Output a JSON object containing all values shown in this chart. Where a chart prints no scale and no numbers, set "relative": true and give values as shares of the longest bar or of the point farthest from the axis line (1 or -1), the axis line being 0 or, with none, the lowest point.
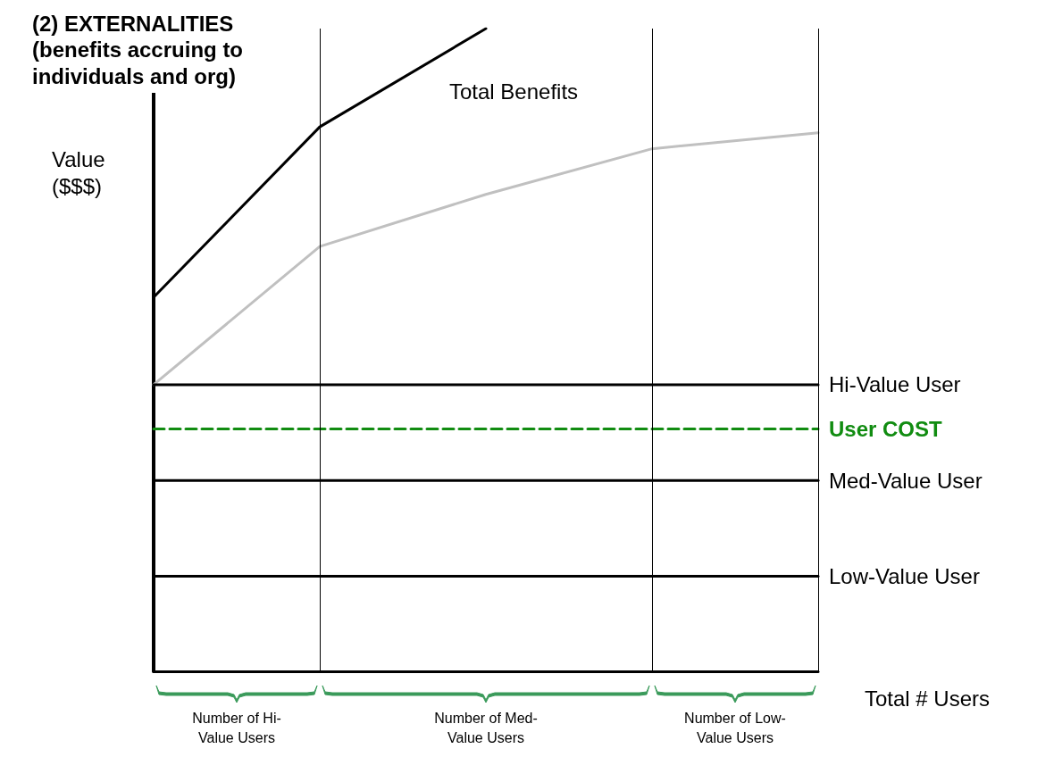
{
  "chart_data": {
    "type": "line",
    "title": "(2) EXTERNALITIES",
    "subtitle": "(benefits accruing to individuals and org)",
    "ylabel": "Value ($$$)",
    "xlabel": "Total # Users",
    "relative": true,
    "marker": "none",
    "categories": [
      null,
      null,
      null,
      null,
      null
    ],
    "series": [
      {
        "name": "Total Benefits",
        "color": "#000000",
        "values": [
          0.582,
          0.847,
          1.0,
          null,
          null
        ]
      },
      {
        "color": "#c0c0c0",
        "values": [
          0.446,
          0.661,
          0.742,
          0.813,
          0.838
        ]
      },
      {
        "name": "Hi-Value User",
        "color": "#000000",
        "values": [
          0.446,
          0.446,
          0.446,
          0.446,
          0.446
        ]
      },
      {
        "name": "User COST",
        "color": "#118c11",
        "line_style": "dashed",
        "values": [
          0.377,
          0.377,
          0.377,
          0.377,
          0.377
        ]
      },
      {
        "name": "Med-Value User",
        "color": "#000000",
        "values": [
          0.297,
          0.297,
          0.297,
          0.297,
          0.297
        ]
      },
      {
        "name": "Low-Value User",
        "color": "#000000",
        "values": [
          0.148,
          0.148,
          0.148,
          0.148,
          0.148
        ]
      }
    ],
    "annotations": [
      "Number of Hi-Value Users",
      "Number of Med-Value Users",
      "Number of Low-Value Users"
    ]
  }
}
